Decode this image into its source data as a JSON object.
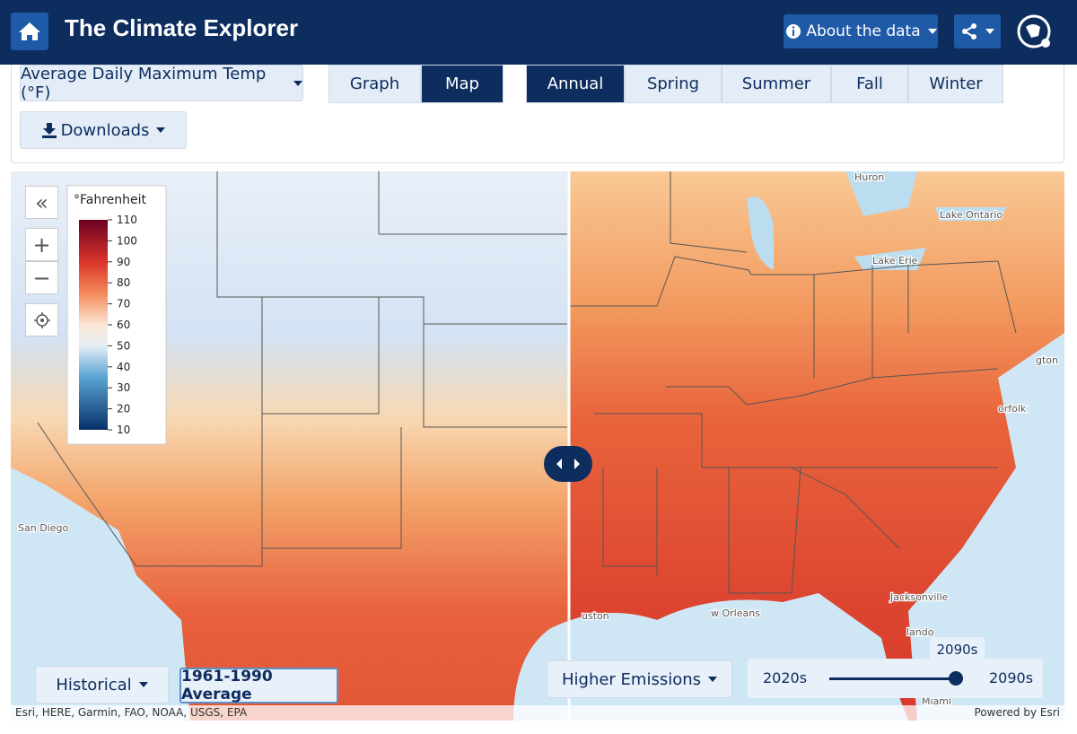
{
  "header": {
    "title": "The Climate Explorer",
    "about": "About the data"
  },
  "toolbar": {
    "variable": "Average Daily Maximum Temp (°F)",
    "views": [
      "Graph",
      "Map"
    ],
    "active_view": "Map",
    "seasons": [
      "Annual",
      "Spring",
      "Summer",
      "Fall",
      "Winter"
    ],
    "active_season": "Annual",
    "downloads": "Downloads"
  },
  "legend": {
    "title": "°Fahrenheit",
    "ticks": [
      110,
      100,
      90,
      80,
      70,
      60,
      50,
      40,
      30,
      20,
      10
    ]
  },
  "map_labels": [
    "Huron",
    "Lake Ontario",
    "Lake Erie",
    "San Diego",
    "Jacksonville",
    "w Orleans",
    "uston",
    "lando",
    "orfolk",
    "gton",
    "Miami"
  ],
  "left_controls": {
    "scenario": "Historical",
    "period": "1961-1990 Average"
  },
  "right_controls": {
    "scenario": "Higher Emissions",
    "slider_min": "2020s",
    "slider_max": "2090s",
    "slider_value": "2090s"
  },
  "attribution": "Esri, HERE, Garmin, FAO, NOAA, USGS, EPA",
  "powered_by": "Powered by Esri"
}
